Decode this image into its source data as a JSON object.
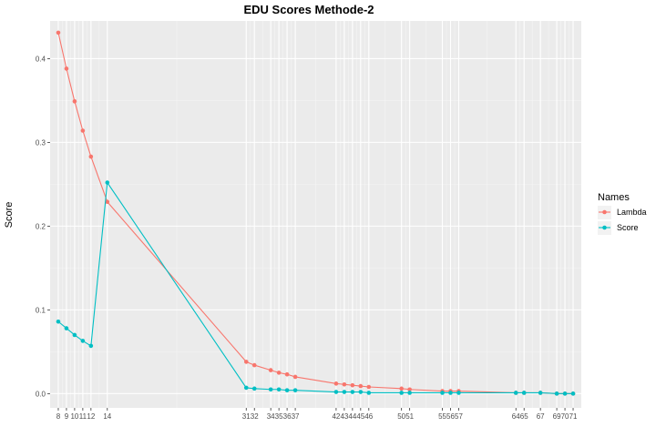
{
  "chart_data": {
    "type": "line",
    "title": "EDU Scores  Methode-2",
    "xlabel": "",
    "ylabel": "Score",
    "x": [
      8,
      9,
      10,
      11,
      12,
      14,
      31,
      32,
      34,
      35,
      36,
      37,
      42,
      43,
      44,
      45,
      46,
      50,
      51,
      55,
      56,
      57,
      64,
      65,
      67,
      69,
      70,
      71
    ],
    "x_tick_labels": [
      "8",
      "9",
      "10",
      "11",
      "12",
      "14",
      "31",
      "32",
      "34",
      "35",
      "36",
      "37",
      "42",
      "43",
      "44",
      "45",
      "46",
      "50",
      "51",
      "55",
      "56",
      "57",
      "64",
      "65",
      "67",
      "69",
      "70",
      "71"
    ],
    "xlim": [
      7,
      72
    ],
    "ylim": [
      -0.017,
      0.445
    ],
    "y_ticks": [
      0.0,
      0.1,
      0.2,
      0.3,
      0.4
    ],
    "y_tick_labels": [
      "0.0",
      "0.1",
      "0.2",
      "0.3",
      "0.4"
    ],
    "grid": true,
    "legend_title": "Names",
    "legend_position": "right",
    "series": [
      {
        "name": "Lambda",
        "color": "#F8766D",
        "values": [
          0.431,
          0.388,
          0.349,
          0.314,
          0.283,
          0.229,
          0.038,
          0.034,
          0.028,
          0.025,
          0.023,
          0.02,
          0.012,
          0.011,
          0.01,
          0.009,
          0.008,
          0.006,
          0.005,
          0.003,
          0.003,
          0.003,
          0.001,
          0.001,
          0.001,
          0.0,
          0.0,
          0.0
        ]
      },
      {
        "name": "Score",
        "color": "#00BFC4",
        "values": [
          0.086,
          0.078,
          0.07,
          0.063,
          0.057,
          0.252,
          0.007,
          0.006,
          0.005,
          0.005,
          0.004,
          0.004,
          0.002,
          0.002,
          0.002,
          0.002,
          0.001,
          0.001,
          0.001,
          0.001,
          0.001,
          0.001,
          0.001,
          0.001,
          0.001,
          0.0,
          0.0,
          0.0
        ]
      }
    ]
  }
}
